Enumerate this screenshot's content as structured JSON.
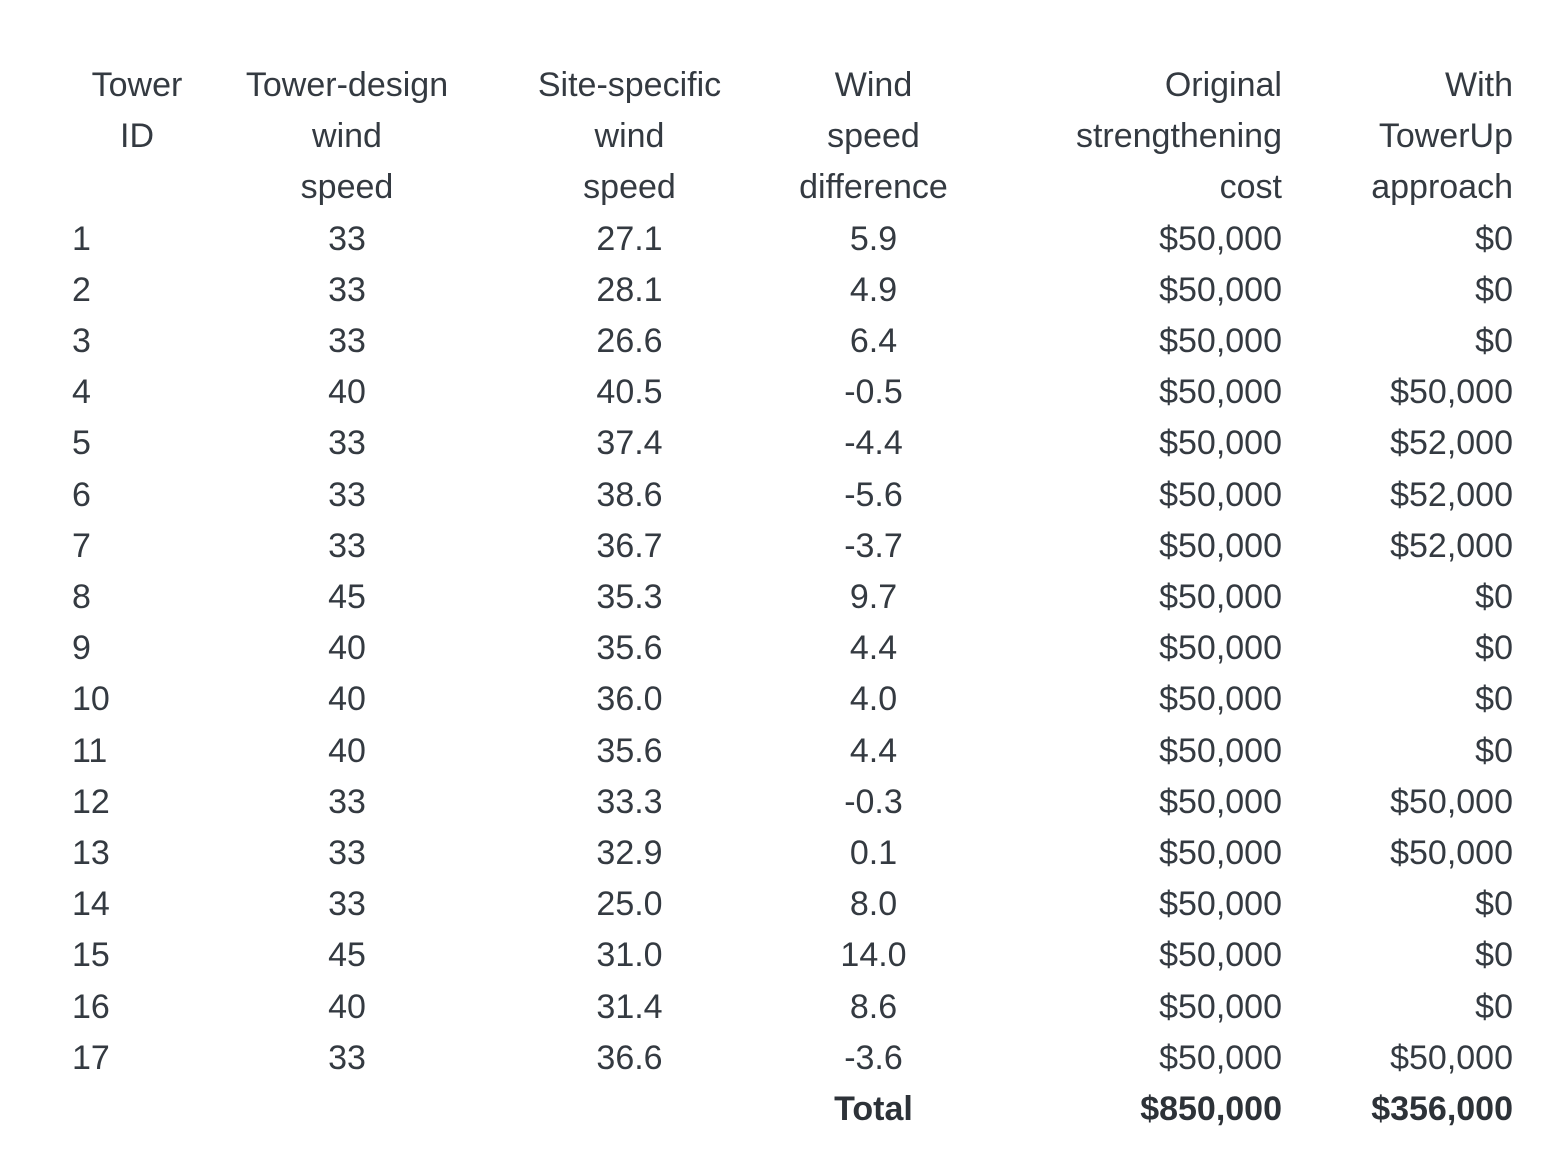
{
  "table": {
    "columns": [
      {
        "id": "tower-id",
        "header_lines": [
          "Tower",
          "ID"
        ]
      },
      {
        "id": "tower-design-wind-speed",
        "header_lines": [
          "Tower-design",
          "wind",
          "speed"
        ]
      },
      {
        "id": "site-specific-wind-speed",
        "header_lines": [
          "Site-specific",
          "wind",
          "speed"
        ]
      },
      {
        "id": "wind-speed-difference",
        "header_lines": [
          "Wind",
          "speed",
          "difference"
        ]
      },
      {
        "id": "original-strengthening-cost",
        "header_lines": [
          "Original",
          "strengthening",
          "cost"
        ]
      },
      {
        "id": "with-towerup-approach",
        "header_lines": [
          "With",
          "TowerUp",
          "approach"
        ]
      }
    ],
    "rows": [
      [
        "1",
        "33",
        "27.1",
        "5.9",
        "$50,000",
        "$0"
      ],
      [
        "2",
        "33",
        "28.1",
        "4.9",
        "$50,000",
        "$0"
      ],
      [
        "3",
        "33",
        "26.6",
        "6.4",
        "$50,000",
        "$0"
      ],
      [
        "4",
        "40",
        "40.5",
        "-0.5",
        "$50,000",
        "$50,000"
      ],
      [
        "5",
        "33",
        "37.4",
        "-4.4",
        "$50,000",
        "$52,000"
      ],
      [
        "6",
        "33",
        "38.6",
        "-5.6",
        "$50,000",
        "$52,000"
      ],
      [
        "7",
        "33",
        "36.7",
        "-3.7",
        "$50,000",
        "$52,000"
      ],
      [
        "8",
        "45",
        "35.3",
        "9.7",
        "$50,000",
        "$0"
      ],
      [
        "9",
        "40",
        "35.6",
        "4.4",
        "$50,000",
        "$0"
      ],
      [
        "10",
        "40",
        "36.0",
        "4.0",
        "$50,000",
        "$0"
      ],
      [
        "11",
        "40",
        "35.6",
        "4.4",
        "$50,000",
        "$0"
      ],
      [
        "12",
        "33",
        "33.3",
        "-0.3",
        "$50,000",
        "$50,000"
      ],
      [
        "13",
        "33",
        "32.9",
        "0.1",
        "$50,000",
        "$50,000"
      ],
      [
        "14",
        "33",
        "25.0",
        "8.0",
        "$50,000",
        "$0"
      ],
      [
        "15",
        "45",
        "31.0",
        "14.0",
        "$50,000",
        "$0"
      ],
      [
        "16",
        "40",
        "31.4",
        "8.6",
        "$50,000",
        "$0"
      ],
      [
        "17",
        "33",
        "36.6",
        "-3.6",
        "$50,000",
        "$50,000"
      ]
    ],
    "total_row": [
      "",
      "",
      "",
      "Total",
      "$850,000",
      "$356,000"
    ]
  },
  "colors": {
    "background": "#ffffff",
    "text": "#343a41",
    "total_text": "#2d3238"
  }
}
